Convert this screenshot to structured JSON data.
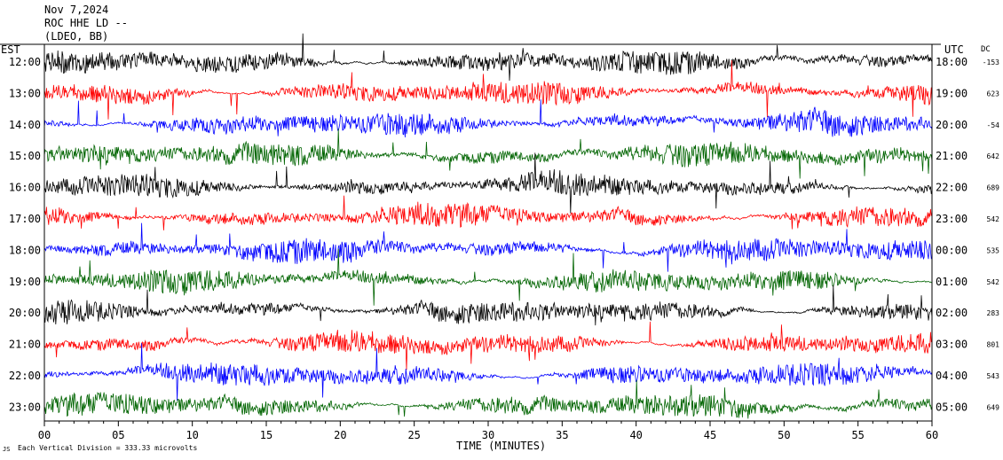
{
  "header": {
    "date": "Nov 7,2024",
    "station": "ROC HHE LD --",
    "network": "(LDEO, BB)"
  },
  "chart_data": {
    "type": "line",
    "title": "",
    "left_axis_label": "EST",
    "right_axis_label": "UTC",
    "dc_label": "DC",
    "xlabel": "TIME (MINUTES)",
    "footer": "Each Vertical Division = 333.33 microvolts",
    "xlim": [
      0,
      60
    ],
    "x_ticks": [
      "00",
      "05",
      "10",
      "15",
      "20",
      "25",
      "30",
      "35",
      "40",
      "45",
      "50",
      "55",
      "60"
    ],
    "grid": false,
    "trace_colors": [
      "#000000",
      "#ff0000",
      "#0000ff",
      "#006400"
    ],
    "rows": [
      {
        "est": "12:00",
        "utc": "18:00",
        "dc": "-153"
      },
      {
        "est": "13:00",
        "utc": "19:00",
        "dc": "623"
      },
      {
        "est": "14:00",
        "utc": "20:00",
        "dc": "-54"
      },
      {
        "est": "15:00",
        "utc": "21:00",
        "dc": "642"
      },
      {
        "est": "16:00",
        "utc": "22:00",
        "dc": "689"
      },
      {
        "est": "17:00",
        "utc": "23:00",
        "dc": "542"
      },
      {
        "est": "18:00",
        "utc": "00:00",
        "dc": "535"
      },
      {
        "est": "19:00",
        "utc": "01:00",
        "dc": "542"
      },
      {
        "est": "20:00",
        "utc": "02:00",
        "dc": "283"
      },
      {
        "est": "21:00",
        "utc": "03:00",
        "dc": "801"
      },
      {
        "est": "22:00",
        "utc": "04:00",
        "dc": "543"
      },
      {
        "est": "23:00",
        "utc": "05:00",
        "dc": "649"
      }
    ]
  }
}
